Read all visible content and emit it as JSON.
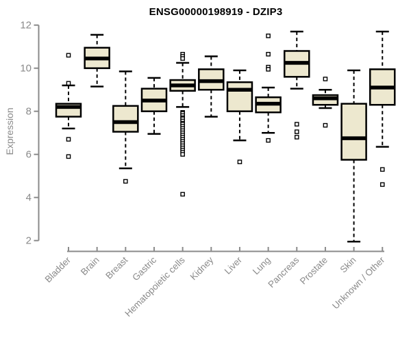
{
  "colors": {
    "background": "#ffffff",
    "box_fill": "#EDE8CF",
    "box_stroke": "#000000",
    "median": "#000000",
    "whisker": "#000000",
    "outlier_fill": "#ffffff",
    "outlier_stroke": "#000000",
    "axis": "#8a8a8a",
    "tick_label": "#8a8a8a",
    "title": "#000000"
  },
  "chart_data": {
    "type": "boxplot",
    "title": "ENSG00000198919 - DZIP3",
    "xlabel": "",
    "ylabel": "Expression",
    "ylim": [
      2,
      12
    ],
    "yticks": [
      2,
      4,
      6,
      8,
      10,
      12
    ],
    "grid": false,
    "legend": "none",
    "x_label_rotation_deg": 45,
    "categories": [
      "Bladder",
      "Brain",
      "Breast",
      "Gastric",
      "Hematopoietic cells",
      "Kidney",
      "Liver",
      "Lung",
      "Pancreas",
      "Prostate",
      "Skin",
      "Unknown / Other"
    ],
    "series": [
      {
        "category": "Bladder",
        "whisker_low": 7.2,
        "q1": 7.75,
        "median": 8.2,
        "q3": 8.35,
        "whisker_high": 9.2,
        "outliers": [
          10.6,
          9.3,
          6.7,
          5.9
        ]
      },
      {
        "category": "Brain",
        "whisker_low": 9.15,
        "q1": 10.0,
        "median": 10.45,
        "q3": 10.95,
        "whisker_high": 11.55,
        "outliers": []
      },
      {
        "category": "Breast",
        "whisker_low": 5.35,
        "q1": 7.05,
        "median": 7.5,
        "q3": 8.25,
        "whisker_high": 9.85,
        "outliers": [
          4.75
        ]
      },
      {
        "category": "Gastric",
        "whisker_low": 6.95,
        "q1": 8.0,
        "median": 8.5,
        "q3": 9.05,
        "whisker_high": 9.55,
        "outliers": []
      },
      {
        "category": "Hematopoietic cells",
        "whisker_low": 8.2,
        "q1": 8.95,
        "median": 9.2,
        "q3": 9.45,
        "whisker_high": 10.25,
        "outliers": [
          10.65,
          10.55,
          10.45,
          7.95,
          7.9,
          7.8,
          7.7,
          7.65,
          7.55,
          7.45,
          7.4,
          7.3,
          7.2,
          7.1,
          7.0,
          6.9,
          6.8,
          6.7,
          6.6,
          6.5,
          6.4,
          6.3,
          6.2,
          6.1,
          6.0,
          4.15
        ]
      },
      {
        "category": "Kidney",
        "whisker_low": 7.75,
        "q1": 9.0,
        "median": 9.4,
        "q3": 9.95,
        "whisker_high": 10.55,
        "outliers": []
      },
      {
        "category": "Liver",
        "whisker_low": 6.65,
        "q1": 8.0,
        "median": 9.0,
        "q3": 9.35,
        "whisker_high": 9.9,
        "outliers": [
          5.65
        ]
      },
      {
        "category": "Lung",
        "whisker_low": 7.0,
        "q1": 7.95,
        "median": 8.35,
        "q3": 8.65,
        "whisker_high": 9.1,
        "outliers": [
          11.5,
          10.65,
          10.05,
          9.95,
          6.65
        ]
      },
      {
        "category": "Pancreas",
        "whisker_low": 9.05,
        "q1": 9.6,
        "median": 10.25,
        "q3": 10.8,
        "whisker_high": 11.7,
        "outliers": [
          7.4,
          7.05,
          6.8
        ]
      },
      {
        "category": "Prostate",
        "whisker_low": 8.15,
        "q1": 8.3,
        "median": 8.6,
        "q3": 8.75,
        "whisker_high": 9.0,
        "outliers": [
          9.5,
          7.35
        ]
      },
      {
        "category": "Skin",
        "whisker_low": 1.95,
        "q1": 5.75,
        "median": 6.75,
        "q3": 8.35,
        "whisker_high": 9.9,
        "outliers": []
      },
      {
        "category": "Unknown / Other",
        "whisker_low": 6.35,
        "q1": 8.3,
        "median": 9.1,
        "q3": 9.95,
        "whisker_high": 11.7,
        "outliers": [
          5.3,
          4.6
        ]
      }
    ]
  }
}
